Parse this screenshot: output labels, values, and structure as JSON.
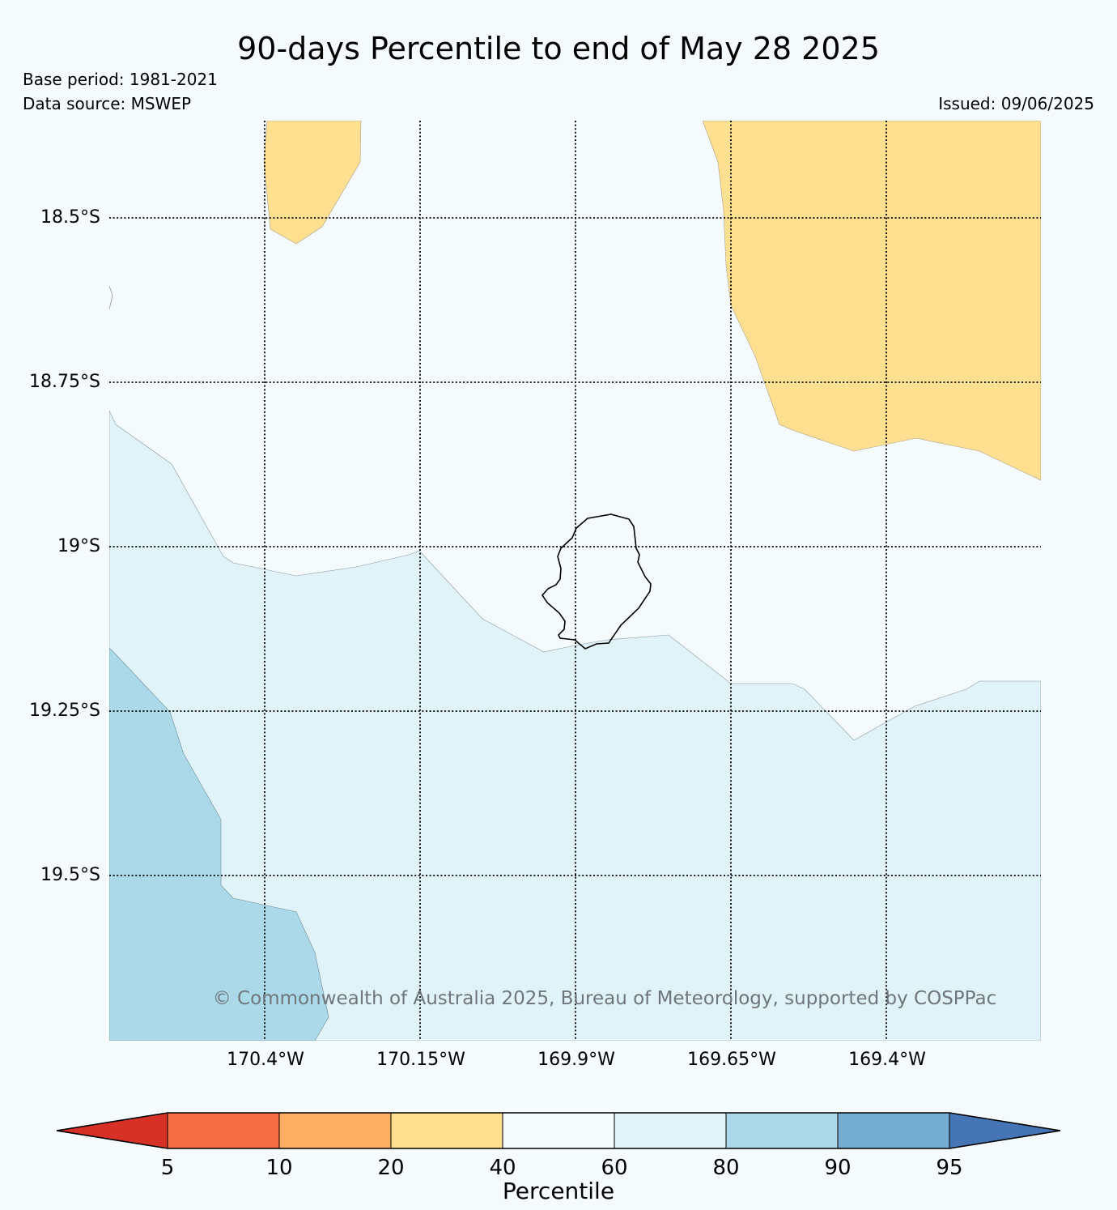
{
  "header": {
    "title": "90-days Percentile to end of May 28 2025",
    "base_period": "Base period: 1981-2021",
    "data_source": "Data source: MSWEP",
    "issued": "Issued: 09/06/2025"
  },
  "map": {
    "lat_ticks": [
      {
        "value": -18.5,
        "label": "18.5°S"
      },
      {
        "value": -18.75,
        "label": "18.75°S"
      },
      {
        "value": -19.0,
        "label": "19°S"
      },
      {
        "value": -19.25,
        "label": "19.25°S"
      },
      {
        "value": -19.5,
        "label": "19.5°S"
      }
    ],
    "lon_ticks": [
      {
        "value": -170.4,
        "label": "170.4°W"
      },
      {
        "value": -170.15,
        "label": "170.15°W"
      },
      {
        "value": -169.9,
        "label": "169.9°W"
      },
      {
        "value": -169.65,
        "label": "169.65°W"
      },
      {
        "value": -169.4,
        "label": "169.4°W"
      }
    ],
    "credit": "© Commonwealth of Australia 2025, Bureau of Meteorology, supported by COSPPac",
    "region_colors": {
      "background_40_60": "#f5fafd",
      "percentile_20_40": "#fee090",
      "percentile_60_80": "#e0f3f8",
      "percentile_80_90": "#abd9e9"
    }
  },
  "colorbar": {
    "title": "Percentile",
    "tick_labels": [
      "5",
      "10",
      "20",
      "40",
      "60",
      "80",
      "90",
      "95"
    ],
    "colors": [
      "#d73027",
      "#f46d43",
      "#fdae61",
      "#fee090",
      "#f5fafd",
      "#e0f3f8",
      "#abd9e9",
      "#74add1",
      "#4575b4"
    ]
  }
}
